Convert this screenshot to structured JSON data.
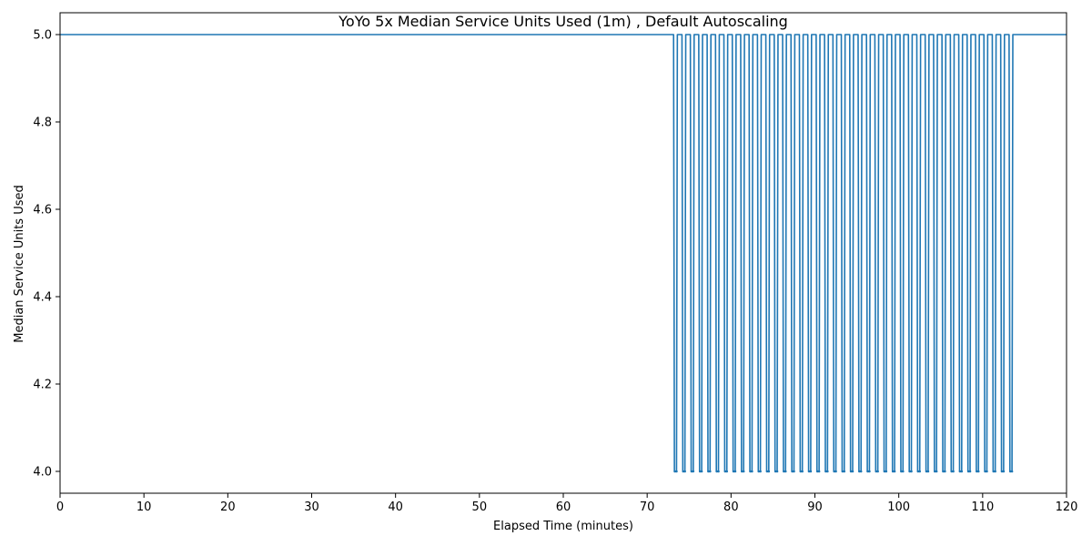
{
  "chart_data": {
    "type": "line",
    "title": "YoYo 5x Median Service Units Used (1m) , Default Autoscaling",
    "xlabel": "Elapsed Time (minutes)",
    "ylabel": "Median Service Units Used",
    "xlim": [
      0,
      120
    ],
    "ylim": [
      3.95,
      5.05
    ],
    "xticks": [
      0,
      10,
      20,
      30,
      40,
      50,
      60,
      70,
      80,
      90,
      100,
      110,
      120
    ],
    "yticks": [
      4.0,
      4.2,
      4.4,
      4.6,
      4.8,
      5.0
    ],
    "grid": false,
    "series": [
      {
        "color": "#1f77b4",
        "baseline_value": 5.0,
        "dip_value": 4.0,
        "x_start": 0,
        "x_end": 120,
        "dip_times": [
          73.2,
          74.2,
          75.2,
          76.2,
          77.2,
          78.2,
          79.2,
          80.2,
          81.2,
          82.2,
          83.2,
          84.2,
          85.2,
          86.2,
          87.2,
          88.2,
          89.2,
          90.2,
          91.2,
          92.2,
          93.2,
          94.2,
          95.2,
          96.2,
          97.2,
          98.2,
          99.2,
          100.2,
          101.2,
          102.2,
          103.2,
          104.2,
          105.2,
          106.2,
          107.2,
          108.2,
          109.2,
          110.2,
          111.2,
          112.2,
          113.2
        ]
      }
    ]
  }
}
